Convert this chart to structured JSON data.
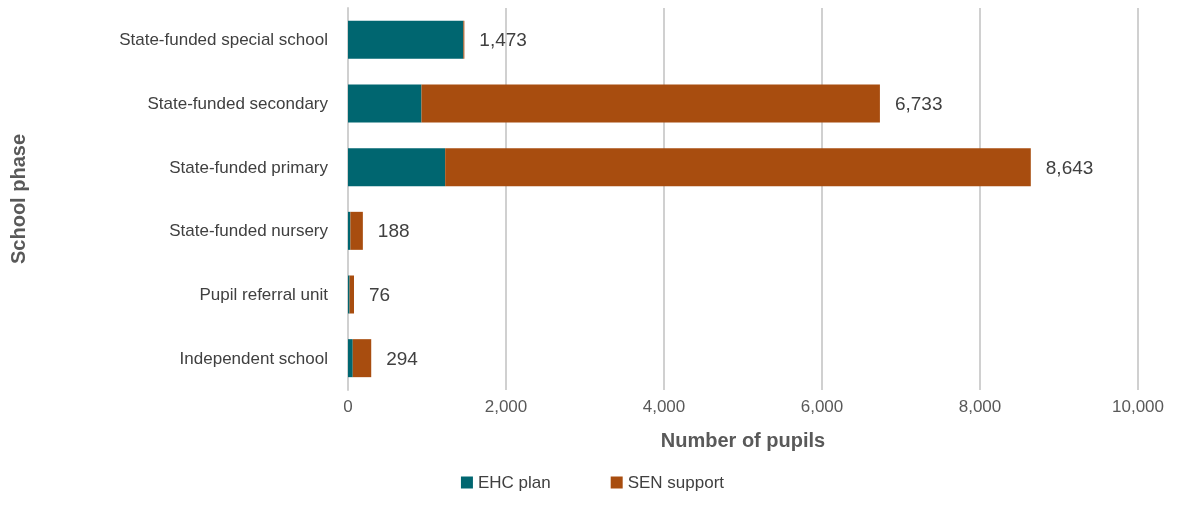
{
  "chart_data": {
    "type": "bar",
    "orientation": "horizontal",
    "stacked": true,
    "xlabel": "Number of pupils",
    "ylabel": "School phase",
    "categories": [
      "State-funded special school",
      "State-funded secondary",
      "State-funded primary",
      "State-funded nursery",
      "Pupil referral unit",
      "Independent school"
    ],
    "series": [
      {
        "name": "EHC plan",
        "color": "#006670",
        "values": [
          1460,
          930,
          1230,
          30,
          20,
          60
        ]
      },
      {
        "name": "SEN support",
        "color": "#a84d0f",
        "values": [
          13,
          5803,
          7413,
          158,
          56,
          234
        ]
      }
    ],
    "totals": [
      "1,473",
      "6,733",
      "8,643",
      "188",
      "76",
      "294"
    ],
    "xlim": [
      0,
      10000
    ],
    "xticks": [
      {
        "value": 0,
        "label": "0"
      },
      {
        "value": 2000,
        "label": "2,000"
      },
      {
        "value": 4000,
        "label": "4,000"
      },
      {
        "value": 6000,
        "label": "6,000"
      },
      {
        "value": 8000,
        "label": "8,000"
      },
      {
        "value": 10000,
        "label": "10,000"
      }
    ],
    "grid": "x",
    "legend": "bottom"
  }
}
